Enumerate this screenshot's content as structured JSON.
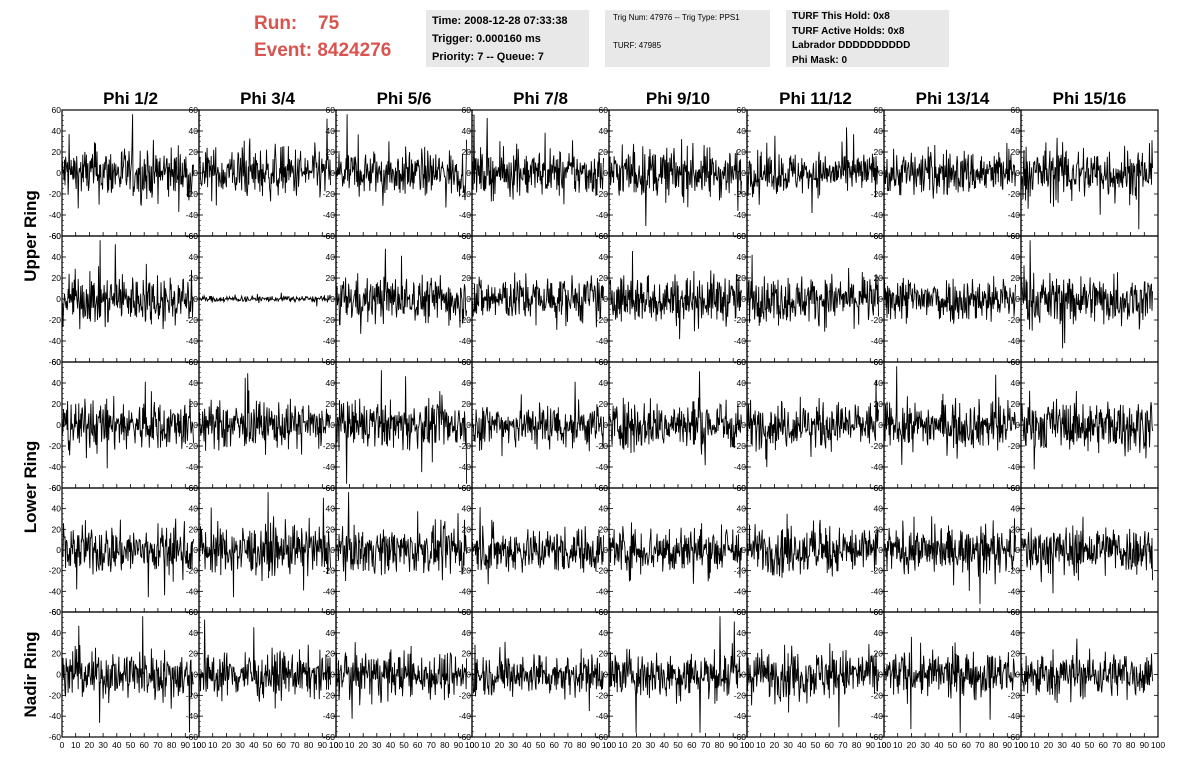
{
  "header": {
    "run_label": "Run:",
    "run_value": "75",
    "event_label": "Event:",
    "event_value": "8424276",
    "accent_color": "#d9534f"
  },
  "time_box": {
    "time": "Time: 2008-12-28 07:33:38",
    "trigger": "Trigger: 0.000160 ms",
    "priority": "Priority: 7 -- Queue: 7"
  },
  "trig_box": {
    "trig": "Trig Num: 47976 -- Trig Type: PPS1",
    "turf": "TURF: 47985"
  },
  "turf_box": {
    "this_hold": "TURF This Hold: 0x8",
    "active_holds": "TURF Active Holds: 0x8",
    "labrador": "Labrador DDDDDDDDDD",
    "phi_mask": "Phi Mask: 0"
  },
  "chart_data": {
    "type": "line",
    "columns": [
      "Phi 1/2",
      "Phi 3/4",
      "Phi 5/6",
      "Phi 7/8",
      "Phi 9/10",
      "Phi 11/12",
      "Phi 13/14",
      "Phi 15/16"
    ],
    "rows": [
      "Upper Ring",
      "Lower Ring",
      "Nadir Ring"
    ],
    "panel_rows": 5,
    "xlim": [
      0,
      100
    ],
    "ylim": [
      -60,
      60
    ],
    "x_ticks": [
      "0",
      "10",
      "20",
      "30",
      "40",
      "50",
      "60",
      "70",
      "80",
      "90",
      "100"
    ],
    "y_ticks": [
      "60",
      "40",
      "20",
      "0",
      "-20",
      "-40",
      "-60"
    ],
    "samples_per_trace": 260,
    "x_max_trace": 96,
    "amplitudes": [
      [
        13,
        12,
        11,
        11,
        12,
        10,
        11,
        13
      ],
      [
        12,
        1.5,
        11,
        11,
        12,
        11,
        11,
        12
      ],
      [
        12,
        11,
        11,
        11,
        12,
        11,
        11,
        12
      ],
      [
        12,
        12,
        11,
        11,
        12,
        12,
        11,
        12
      ],
      [
        12,
        11,
        11,
        10,
        12,
        12,
        11,
        11
      ]
    ],
    "grid": false
  }
}
